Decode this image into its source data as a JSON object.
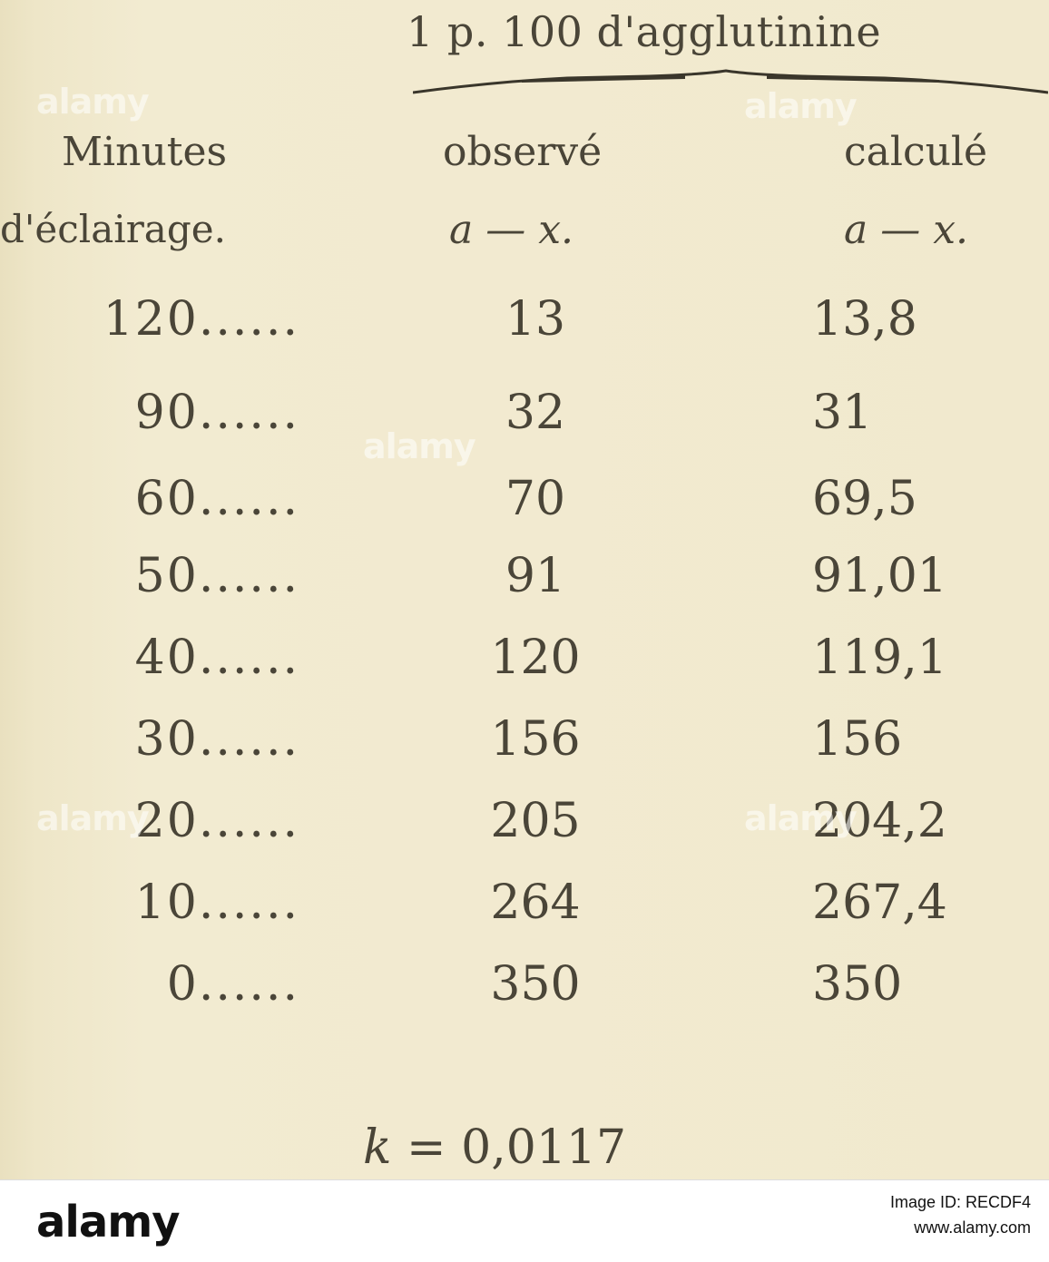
{
  "table": {
    "header_title": "1 p. 100 d'agglutinine",
    "columns": {
      "minutes_line1": "Minutes",
      "minutes_line2": "d'éclairage.",
      "observed_line1": "observé",
      "observed_line2": "a — x.",
      "calculated_line1": "calculé",
      "calculated_line2": "a — x."
    },
    "rows": [
      {
        "minutes": "120......",
        "observed": "13",
        "calculated": "13,8"
      },
      {
        "minutes": "90......",
        "observed": "32",
        "calculated": "31"
      },
      {
        "minutes": "60......",
        "observed": "70",
        "calculated": "69,5"
      },
      {
        "minutes": "50......",
        "observed": "91",
        "calculated": "91,01"
      },
      {
        "minutes": "40......",
        "observed": "120",
        "calculated": "119,1"
      },
      {
        "minutes": "30......",
        "observed": "156",
        "calculated": "156"
      },
      {
        "minutes": "20......",
        "observed": "205",
        "calculated": "204,2"
      },
      {
        "minutes": "10......",
        "observed": "264",
        "calculated": "267,4"
      },
      {
        "minutes": "0......",
        "observed": "350",
        "calculated": "350"
      }
    ],
    "constant_var": "k",
    "constant_value": "= 0,0117"
  },
  "footer": {
    "logo": "alamy",
    "image_id_label": "Image ID: RECDF4",
    "site": "www.alamy.com"
  },
  "watermark": "alamy"
}
